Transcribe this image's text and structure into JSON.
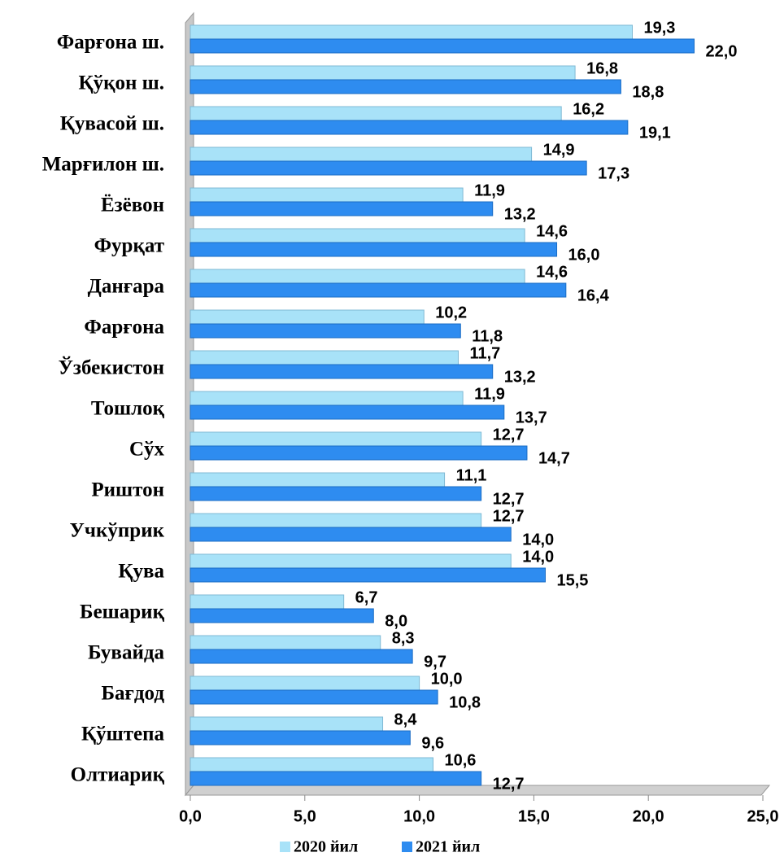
{
  "chart_data": {
    "type": "bar",
    "orientation": "horizontal",
    "categories": [
      "Фарғона ш.",
      "Қўқон ш.",
      "Қувасой ш.",
      "Марғилон ш.",
      "Ёзёвон",
      "Фурқат",
      "Данғара",
      "Фарғона",
      "Ўзбекистон",
      "Тошлоқ",
      "Сўх",
      "Риштон",
      "Учкўприк",
      "Қува",
      "Бешариқ",
      "Бувайда",
      "Бағдод",
      "Қўштепа",
      "Олтиариқ"
    ],
    "series": [
      {
        "name": "2020 йил",
        "color": "#a8e2f8",
        "values": [
          19.3,
          16.8,
          16.2,
          14.9,
          11.9,
          14.6,
          14.6,
          10.2,
          11.7,
          11.9,
          12.7,
          11.1,
          12.7,
          14.0,
          6.7,
          8.3,
          10.0,
          8.4,
          10.6
        ],
        "value_labels": [
          "19,3",
          "16,8",
          "16,2",
          "14,9",
          "11,9",
          "14,6",
          "14,6",
          "10,2",
          "11,7",
          "11,9",
          "12,7",
          "11,1",
          "12,7",
          "14,0",
          "6,7",
          "8,3",
          "10,0",
          "8,4",
          "10,6"
        ]
      },
      {
        "name": "2021 йил",
        "color": "#2e8cf0",
        "values": [
          22.0,
          18.8,
          19.1,
          17.3,
          13.2,
          16.0,
          16.4,
          11.8,
          13.2,
          13.7,
          14.7,
          12.7,
          14.0,
          15.5,
          8.0,
          9.7,
          10.8,
          9.6,
          12.7
        ],
        "value_labels": [
          "22,0",
          "18,8",
          "19,1",
          "17,3",
          "13,2",
          "16,0",
          "16,4",
          "11,8",
          "13,2",
          "13,7",
          "14,7",
          "12,7",
          "14,0",
          "15,5",
          "8,0",
          "9,7",
          "10,8",
          "9,6",
          "12,7"
        ]
      }
    ],
    "xlim": [
      0,
      25
    ],
    "xticks": [
      {
        "value": 0,
        "label": "0,0"
      },
      {
        "value": 5,
        "label": "5,0"
      },
      {
        "value": 10,
        "label": "10,0"
      },
      {
        "value": 15,
        "label": "15,0"
      },
      {
        "value": 20,
        "label": "20,0"
      },
      {
        "value": 25,
        "label": "25,0"
      }
    ],
    "grid": false,
    "legend": "bottom"
  }
}
